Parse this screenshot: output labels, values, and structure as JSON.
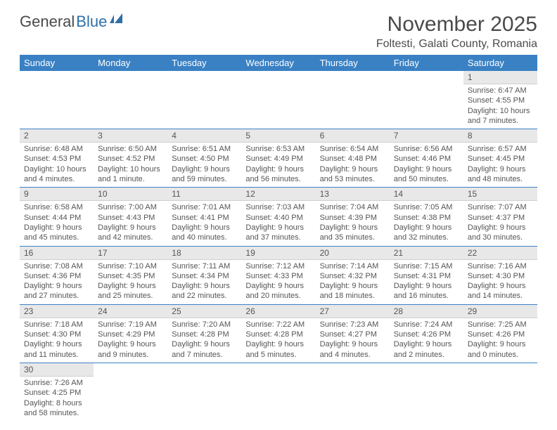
{
  "logo": {
    "text1": "General",
    "text2": "Blue",
    "accent_color": "#2f6fa8"
  },
  "header": {
    "month_title": "November 2025",
    "location": "Foltesti, Galati County, Romania"
  },
  "colors": {
    "header_bg": "#3a81c4",
    "header_text": "#ffffff",
    "daynum_bg": "#e8e8e8",
    "border": "#3a81c4",
    "body_text": "#555555"
  },
  "weekdays": [
    "Sunday",
    "Monday",
    "Tuesday",
    "Wednesday",
    "Thursday",
    "Friday",
    "Saturday"
  ],
  "weeks": [
    [
      null,
      null,
      null,
      null,
      null,
      null,
      {
        "n": "1",
        "sr": "Sunrise: 6:47 AM",
        "ss": "Sunset: 4:55 PM",
        "d1": "Daylight: 10 hours",
        "d2": "and 7 minutes."
      }
    ],
    [
      {
        "n": "2",
        "sr": "Sunrise: 6:48 AM",
        "ss": "Sunset: 4:53 PM",
        "d1": "Daylight: 10 hours",
        "d2": "and 4 minutes."
      },
      {
        "n": "3",
        "sr": "Sunrise: 6:50 AM",
        "ss": "Sunset: 4:52 PM",
        "d1": "Daylight: 10 hours",
        "d2": "and 1 minute."
      },
      {
        "n": "4",
        "sr": "Sunrise: 6:51 AM",
        "ss": "Sunset: 4:50 PM",
        "d1": "Daylight: 9 hours",
        "d2": "and 59 minutes."
      },
      {
        "n": "5",
        "sr": "Sunrise: 6:53 AM",
        "ss": "Sunset: 4:49 PM",
        "d1": "Daylight: 9 hours",
        "d2": "and 56 minutes."
      },
      {
        "n": "6",
        "sr": "Sunrise: 6:54 AM",
        "ss": "Sunset: 4:48 PM",
        "d1": "Daylight: 9 hours",
        "d2": "and 53 minutes."
      },
      {
        "n": "7",
        "sr": "Sunrise: 6:56 AM",
        "ss": "Sunset: 4:46 PM",
        "d1": "Daylight: 9 hours",
        "d2": "and 50 minutes."
      },
      {
        "n": "8",
        "sr": "Sunrise: 6:57 AM",
        "ss": "Sunset: 4:45 PM",
        "d1": "Daylight: 9 hours",
        "d2": "and 48 minutes."
      }
    ],
    [
      {
        "n": "9",
        "sr": "Sunrise: 6:58 AM",
        "ss": "Sunset: 4:44 PM",
        "d1": "Daylight: 9 hours",
        "d2": "and 45 minutes."
      },
      {
        "n": "10",
        "sr": "Sunrise: 7:00 AM",
        "ss": "Sunset: 4:43 PM",
        "d1": "Daylight: 9 hours",
        "d2": "and 42 minutes."
      },
      {
        "n": "11",
        "sr": "Sunrise: 7:01 AM",
        "ss": "Sunset: 4:41 PM",
        "d1": "Daylight: 9 hours",
        "d2": "and 40 minutes."
      },
      {
        "n": "12",
        "sr": "Sunrise: 7:03 AM",
        "ss": "Sunset: 4:40 PM",
        "d1": "Daylight: 9 hours",
        "d2": "and 37 minutes."
      },
      {
        "n": "13",
        "sr": "Sunrise: 7:04 AM",
        "ss": "Sunset: 4:39 PM",
        "d1": "Daylight: 9 hours",
        "d2": "and 35 minutes."
      },
      {
        "n": "14",
        "sr": "Sunrise: 7:05 AM",
        "ss": "Sunset: 4:38 PM",
        "d1": "Daylight: 9 hours",
        "d2": "and 32 minutes."
      },
      {
        "n": "15",
        "sr": "Sunrise: 7:07 AM",
        "ss": "Sunset: 4:37 PM",
        "d1": "Daylight: 9 hours",
        "d2": "and 30 minutes."
      }
    ],
    [
      {
        "n": "16",
        "sr": "Sunrise: 7:08 AM",
        "ss": "Sunset: 4:36 PM",
        "d1": "Daylight: 9 hours",
        "d2": "and 27 minutes."
      },
      {
        "n": "17",
        "sr": "Sunrise: 7:10 AM",
        "ss": "Sunset: 4:35 PM",
        "d1": "Daylight: 9 hours",
        "d2": "and 25 minutes."
      },
      {
        "n": "18",
        "sr": "Sunrise: 7:11 AM",
        "ss": "Sunset: 4:34 PM",
        "d1": "Daylight: 9 hours",
        "d2": "and 22 minutes."
      },
      {
        "n": "19",
        "sr": "Sunrise: 7:12 AM",
        "ss": "Sunset: 4:33 PM",
        "d1": "Daylight: 9 hours",
        "d2": "and 20 minutes."
      },
      {
        "n": "20",
        "sr": "Sunrise: 7:14 AM",
        "ss": "Sunset: 4:32 PM",
        "d1": "Daylight: 9 hours",
        "d2": "and 18 minutes."
      },
      {
        "n": "21",
        "sr": "Sunrise: 7:15 AM",
        "ss": "Sunset: 4:31 PM",
        "d1": "Daylight: 9 hours",
        "d2": "and 16 minutes."
      },
      {
        "n": "22",
        "sr": "Sunrise: 7:16 AM",
        "ss": "Sunset: 4:30 PM",
        "d1": "Daylight: 9 hours",
        "d2": "and 14 minutes."
      }
    ],
    [
      {
        "n": "23",
        "sr": "Sunrise: 7:18 AM",
        "ss": "Sunset: 4:30 PM",
        "d1": "Daylight: 9 hours",
        "d2": "and 11 minutes."
      },
      {
        "n": "24",
        "sr": "Sunrise: 7:19 AM",
        "ss": "Sunset: 4:29 PM",
        "d1": "Daylight: 9 hours",
        "d2": "and 9 minutes."
      },
      {
        "n": "25",
        "sr": "Sunrise: 7:20 AM",
        "ss": "Sunset: 4:28 PM",
        "d1": "Daylight: 9 hours",
        "d2": "and 7 minutes."
      },
      {
        "n": "26",
        "sr": "Sunrise: 7:22 AM",
        "ss": "Sunset: 4:28 PM",
        "d1": "Daylight: 9 hours",
        "d2": "and 5 minutes."
      },
      {
        "n": "27",
        "sr": "Sunrise: 7:23 AM",
        "ss": "Sunset: 4:27 PM",
        "d1": "Daylight: 9 hours",
        "d2": "and 4 minutes."
      },
      {
        "n": "28",
        "sr": "Sunrise: 7:24 AM",
        "ss": "Sunset: 4:26 PM",
        "d1": "Daylight: 9 hours",
        "d2": "and 2 minutes."
      },
      {
        "n": "29",
        "sr": "Sunrise: 7:25 AM",
        "ss": "Sunset: 4:26 PM",
        "d1": "Daylight: 9 hours",
        "d2": "and 0 minutes."
      }
    ],
    [
      {
        "n": "30",
        "sr": "Sunrise: 7:26 AM",
        "ss": "Sunset: 4:25 PM",
        "d1": "Daylight: 8 hours",
        "d2": "and 58 minutes."
      },
      null,
      null,
      null,
      null,
      null,
      null
    ]
  ]
}
